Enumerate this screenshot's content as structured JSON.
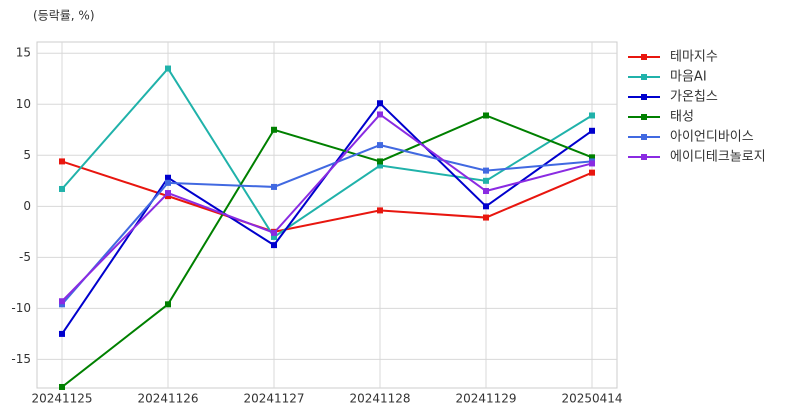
{
  "chart_data": {
    "type": "line",
    "title": "(등락률, %)",
    "categories": [
      "20241125",
      "20241126",
      "20241127",
      "20241128",
      "20241129",
      "20250414"
    ],
    "series": [
      {
        "name": "테마지수",
        "color": "#e8160f",
        "values": [
          4.4,
          1.0,
          -2.5,
          -0.4,
          -1.1,
          3.3
        ]
      },
      {
        "name": "마음AI",
        "color": "#20b2aa",
        "values": [
          1.7,
          13.5,
          -3.0,
          4.0,
          2.5,
          8.9
        ]
      },
      {
        "name": "가온칩스",
        "color": "#0000cd",
        "values": [
          -12.5,
          2.8,
          -3.8,
          10.1,
          0.0,
          7.4
        ]
      },
      {
        "name": "태성",
        "color": "#008000",
        "values": [
          -17.7,
          -9.6,
          7.5,
          4.4,
          8.9,
          4.8
        ]
      },
      {
        "name": "아이언디바이스",
        "color": "#4169e1",
        "values": [
          -9.6,
          2.3,
          1.9,
          6.0,
          3.5,
          4.4
        ]
      },
      {
        "name": "에이디테크놀로지",
        "color": "#8a2be2",
        "values": [
          -9.3,
          1.3,
          -2.6,
          9.0,
          1.5,
          4.2
        ]
      }
    ],
    "ylim": [
      -17.8,
      16.1
    ],
    "yticks": [
      -15,
      -10,
      -5,
      0,
      5,
      10,
      15
    ],
    "grid": true,
    "legend": "outside-right"
  }
}
